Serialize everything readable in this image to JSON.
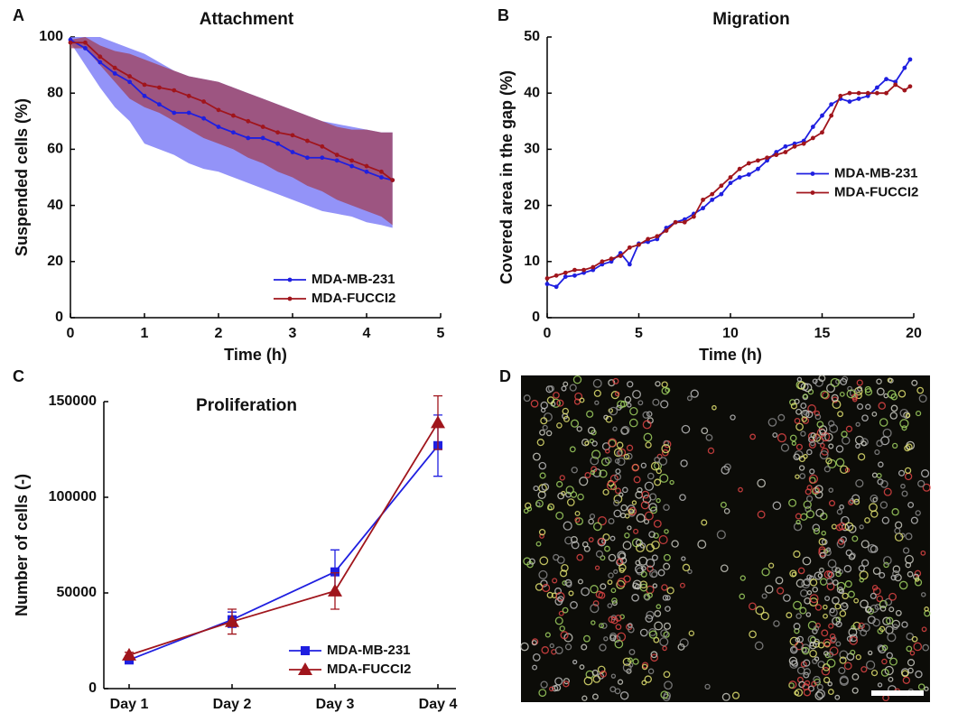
{
  "chart_data": [
    {
      "type": "line",
      "panel": "A",
      "title": "Attachment",
      "xlabel": "Time (h)",
      "ylabel": "Suspended cells (%)",
      "x": [
        0,
        0.2,
        0.4,
        0.6,
        0.8,
        1.0,
        1.2,
        1.4,
        1.6,
        1.8,
        2.0,
        2.2,
        2.4,
        2.6,
        2.8,
        3.0,
        3.2,
        3.4,
        3.6,
        3.8,
        4.0,
        4.2,
        4.35
      ],
      "series": [
        {
          "name": "MDA-MB-231",
          "color": "#1f1fe0",
          "band_color": "#6f6ff5",
          "values": [
            99,
            96,
            91,
            87,
            84,
            79,
            76,
            73,
            73,
            71,
            68,
            66,
            64,
            64,
            62,
            59,
            57,
            57,
            56,
            54,
            52,
            50,
            49
          ],
          "lower": [
            98,
            90,
            82,
            75,
            70,
            62,
            60,
            58,
            55,
            53,
            52,
            50,
            48,
            46,
            44,
            42,
            40,
            38,
            37,
            36,
            34,
            33,
            32
          ],
          "upper": [
            100,
            100,
            100,
            98,
            96,
            94,
            91,
            88,
            86,
            85,
            84,
            82,
            80,
            78,
            76,
            74,
            72,
            70,
            69,
            68,
            67,
            66,
            66
          ]
        },
        {
          "name": "MDA-FUCCI2",
          "color": "#a0151c",
          "band_color": "#a0405a",
          "values": [
            98,
            98,
            93,
            89,
            86,
            83,
            82,
            81,
            79,
            77,
            74,
            72,
            70,
            68,
            66,
            65,
            63,
            61,
            58,
            56,
            54,
            52,
            49
          ],
          "lower": [
            96,
            96,
            90,
            84,
            78,
            75,
            73,
            70,
            67,
            64,
            62,
            60,
            57,
            55,
            52,
            50,
            47,
            45,
            42,
            40,
            38,
            36,
            33
          ],
          "upper": [
            99,
            100,
            97,
            95,
            94,
            92,
            90,
            88,
            86,
            85,
            84,
            82,
            80,
            78,
            76,
            74,
            72,
            70,
            68,
            67,
            67,
            66,
            66
          ]
        }
      ],
      "xlim": [
        0,
        5
      ],
      "xticks": [
        0,
        1,
        2,
        3,
        4,
        5
      ],
      "ylim": [
        0,
        100
      ],
      "yticks": [
        0,
        20,
        40,
        60,
        80,
        100
      ],
      "legend": "lower right",
      "marker": "circle"
    },
    {
      "type": "line",
      "panel": "B",
      "title": "Migration",
      "xlabel": "Time (h)",
      "ylabel": "Covered area in the gap (%)",
      "x": [
        0,
        0.5,
        1,
        1.5,
        2,
        2.5,
        3,
        3.5,
        4,
        4.5,
        5,
        5.5,
        6,
        6.5,
        7,
        7.5,
        8,
        8.5,
        9,
        9.5,
        10,
        10.5,
        11,
        11.5,
        12,
        12.5,
        13,
        13.5,
        14,
        14.5,
        15,
        15.5,
        16,
        16.5,
        17,
        17.5,
        18,
        18.5,
        19,
        19.5,
        19.8
      ],
      "series": [
        {
          "name": "MDA-MB-231",
          "color": "#1f1fe0",
          "values": [
            6,
            5.5,
            7.3,
            7.5,
            8,
            8.5,
            9.5,
            10,
            11.5,
            9.5,
            13.2,
            13.5,
            14,
            16,
            17,
            17.5,
            18.5,
            19.5,
            21,
            22,
            24,
            25,
            25.5,
            26.5,
            28,
            29.5,
            30.5,
            31,
            31.5,
            34,
            36,
            38,
            39,
            38.5,
            39,
            39.5,
            41,
            42.5,
            42,
            44.5,
            46
          ]
        },
        {
          "name": "MDA-FUCCI2",
          "color": "#a0151c",
          "values": [
            7,
            7.5,
            8,
            8.5,
            8.5,
            9,
            10,
            10.5,
            11,
            12.5,
            13,
            14,
            14.5,
            15.5,
            17,
            17,
            18,
            21,
            22,
            23.5,
            25,
            26.5,
            27.5,
            28,
            28.5,
            29,
            29.5,
            30.5,
            31,
            32,
            33,
            36,
            39.5,
            40,
            40,
            40,
            40,
            40,
            41.5,
            40.5,
            41.2
          ]
        }
      ],
      "xlim": [
        0,
        20
      ],
      "xticks": [
        0,
        5,
        10,
        15,
        20
      ],
      "ylim": [
        0,
        50
      ],
      "yticks": [
        0,
        10,
        20,
        30,
        40,
        50
      ],
      "legend": "center right",
      "marker": "circle"
    },
    {
      "type": "errorline",
      "panel": "C",
      "title": "Proliferation",
      "ylabel": "Number of cells (-)",
      "categories": [
        "Day 1",
        "Day 2",
        "Day 3",
        "Day 4"
      ],
      "series": [
        {
          "name": "MDA-MB-231",
          "color": "#1f1fe0",
          "marker": "square",
          "values": [
            15000,
            36000,
            61000,
            127000
          ],
          "errors": [
            2000,
            4000,
            11500,
            16000
          ]
        },
        {
          "name": "MDA-FUCCI2",
          "color": "#a0151c",
          "marker": "triangle",
          "values": [
            17500,
            35000,
            51000,
            139000
          ],
          "errors": [
            1500,
            6500,
            9500,
            14000
          ]
        }
      ],
      "ylim": [
        0,
        150000
      ],
      "yticks": [
        0,
        50000,
        100000,
        150000
      ],
      "legend": "lower right"
    }
  ],
  "image_panel": {
    "panel": "D"
  }
}
